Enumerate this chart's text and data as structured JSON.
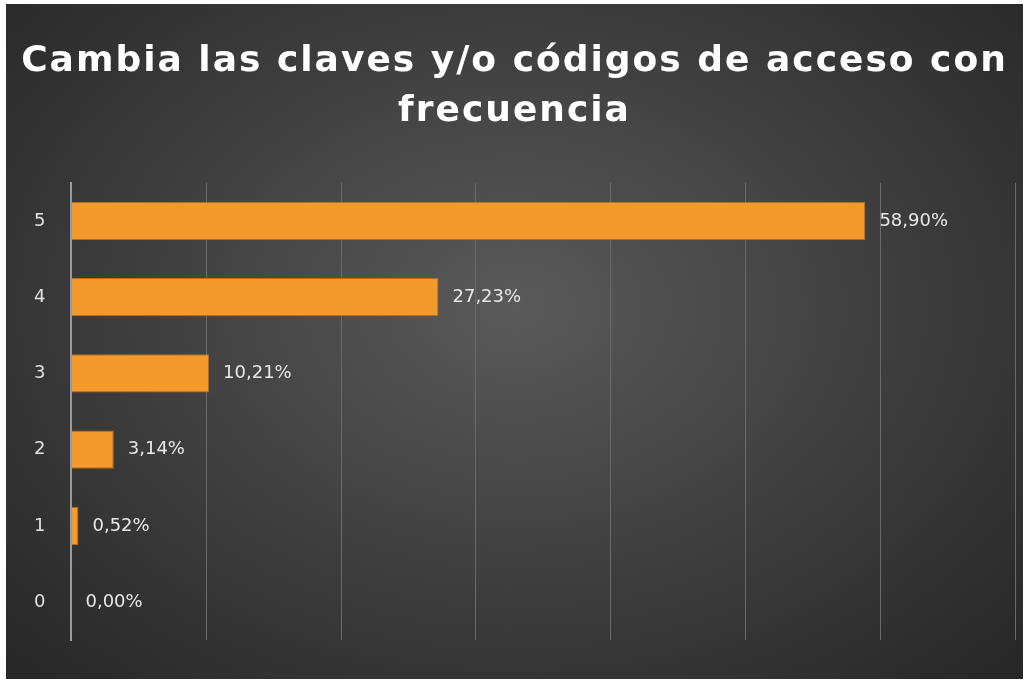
{
  "chart_data": {
    "type": "bar",
    "orientation": "horizontal",
    "title": "Cambia las claves y/o códigos de acceso con frecuencia",
    "categories": [
      "5",
      "4",
      "3",
      "2",
      "1",
      "0"
    ],
    "values": [
      58.9,
      27.23,
      10.21,
      3.14,
      0.52,
      0.0
    ],
    "value_labels": [
      "58,90%",
      "27,23%",
      "10,21%",
      "3,14%",
      "0,52%",
      "0,00%"
    ],
    "color": "#f39a2c",
    "xlim": [
      0,
      70
    ],
    "xticks": [
      {
        "value": 0,
        "label": null
      },
      {
        "value": 10,
        "label": null
      },
      {
        "value": 20,
        "label": null
      },
      {
        "value": 30,
        "label": null
      },
      {
        "value": 40,
        "label": null
      },
      {
        "value": 50,
        "label": null
      },
      {
        "value": 60,
        "label": null
      },
      {
        "value": 70,
        "label": null
      }
    ],
    "grid": "x",
    "tick_labels": "y"
  }
}
